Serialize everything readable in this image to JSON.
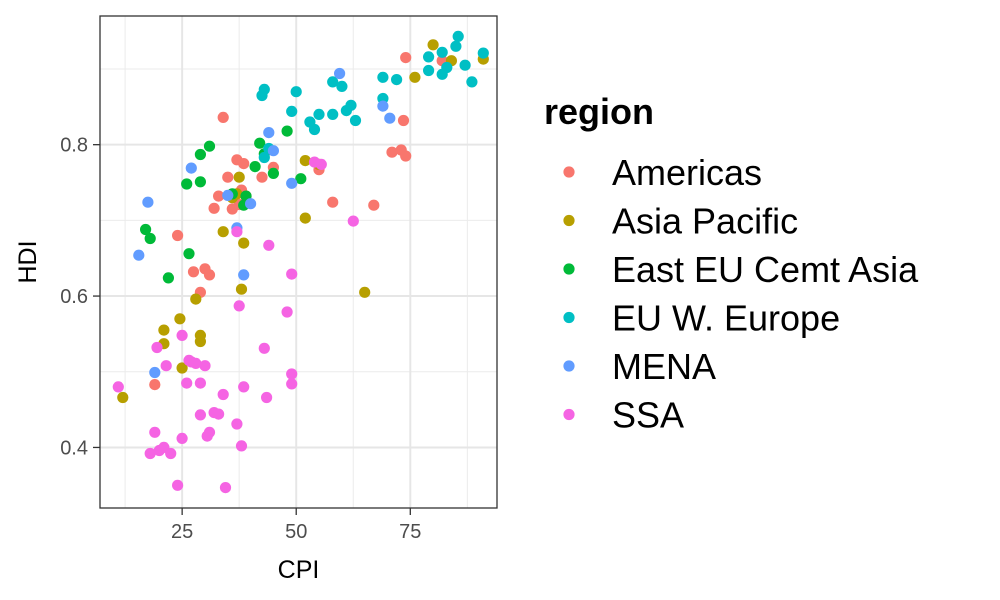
{
  "chart_data": {
    "type": "scatter",
    "xlabel": "CPI",
    "ylabel": "HDI",
    "xlim": [
      7,
      94
    ],
    "ylim": [
      0.32,
      0.97
    ],
    "x_ticks": [
      25,
      50,
      75
    ],
    "y_ticks": [
      0.4,
      0.6,
      0.8
    ],
    "x_tick_labels": [
      "25",
      "50",
      "75"
    ],
    "y_tick_labels": [
      "0.4",
      "0.6",
      "0.8"
    ],
    "grid": true,
    "legend": {
      "title": "region",
      "position": "right"
    },
    "series": [
      {
        "name": "Americas",
        "color": "#F8766D",
        "points": [
          [
            19,
            0.483
          ],
          [
            24,
            0.68
          ],
          [
            27.5,
            0.632
          ],
          [
            29,
            0.605
          ],
          [
            30,
            0.636
          ],
          [
            31,
            0.628
          ],
          [
            32,
            0.716
          ],
          [
            33,
            0.732
          ],
          [
            34,
            0.836
          ],
          [
            35,
            0.757
          ],
          [
            36,
            0.715
          ],
          [
            37,
            0.78
          ],
          [
            37.5,
            0.721
          ],
          [
            38,
            0.74
          ],
          [
            38.5,
            0.775
          ],
          [
            39,
            0.732
          ],
          [
            42.5,
            0.757
          ],
          [
            45,
            0.77
          ],
          [
            55,
            0.767
          ],
          [
            58,
            0.724
          ],
          [
            67,
            0.72
          ],
          [
            71,
            0.79
          ],
          [
            73,
            0.793
          ],
          [
            73.5,
            0.832
          ],
          [
            74,
            0.785
          ],
          [
            74,
            0.915
          ],
          [
            82,
            0.911
          ]
        ]
      },
      {
        "name": "Asia Pacific",
        "color": "#B79F00",
        "points": [
          [
            12,
            0.466
          ],
          [
            21,
            0.537
          ],
          [
            21,
            0.555
          ],
          [
            24.5,
            0.57
          ],
          [
            25,
            0.505
          ],
          [
            28,
            0.596
          ],
          [
            29,
            0.548
          ],
          [
            29,
            0.54
          ],
          [
            34,
            0.685
          ],
          [
            36,
            0.73
          ],
          [
            37,
            0.735
          ],
          [
            37.5,
            0.757
          ],
          [
            38,
            0.609
          ],
          [
            38.5,
            0.67
          ],
          [
            52,
            0.779
          ],
          [
            52,
            0.703
          ],
          [
            55,
            0.774
          ],
          [
            65,
            0.605
          ],
          [
            76,
            0.889
          ],
          [
            80,
            0.932
          ],
          [
            84,
            0.911
          ],
          [
            91,
            0.913
          ]
        ]
      },
      {
        "name": "East EU Cemt Asia",
        "color": "#00BA38",
        "points": [
          [
            17,
            0.688
          ],
          [
            18,
            0.676
          ],
          [
            22,
            0.624
          ],
          [
            26,
            0.748
          ],
          [
            26.5,
            0.656
          ],
          [
            29,
            0.751
          ],
          [
            29,
            0.787
          ],
          [
            31,
            0.798
          ],
          [
            36,
            0.735
          ],
          [
            38.5,
            0.72
          ],
          [
            39,
            0.732
          ],
          [
            41,
            0.771
          ],
          [
            42,
            0.802
          ],
          [
            43,
            0.788
          ],
          [
            45,
            0.762
          ],
          [
            48,
            0.818
          ],
          [
            51,
            0.755
          ]
        ]
      },
      {
        "name": "EU W. Europe",
        "color": "#00BFC4",
        "points": [
          [
            42.5,
            0.865
          ],
          [
            43,
            0.873
          ],
          [
            43,
            0.783
          ],
          [
            44,
            0.795
          ],
          [
            49,
            0.844
          ],
          [
            50,
            0.87
          ],
          [
            53,
            0.83
          ],
          [
            54,
            0.82
          ],
          [
            55,
            0.84
          ],
          [
            58,
            0.84
          ],
          [
            58,
            0.883
          ],
          [
            60,
            0.877
          ],
          [
            61,
            0.845
          ],
          [
            62,
            0.852
          ],
          [
            63,
            0.832
          ],
          [
            69,
            0.861
          ],
          [
            69,
            0.889
          ],
          [
            72,
            0.886
          ],
          [
            79,
            0.898
          ],
          [
            79,
            0.916
          ],
          [
            82,
            0.893
          ],
          [
            82,
            0.922
          ],
          [
            83,
            0.902
          ],
          [
            85,
            0.93
          ],
          [
            85.5,
            0.943
          ],
          [
            87,
            0.905
          ],
          [
            88.5,
            0.883
          ],
          [
            91,
            0.921
          ]
        ]
      },
      {
        "name": "MENA",
        "color": "#619CFF",
        "points": [
          [
            15.5,
            0.654
          ],
          [
            17.5,
            0.724
          ],
          [
            19,
            0.499
          ],
          [
            27,
            0.769
          ],
          [
            35,
            0.733
          ],
          [
            37,
            0.69
          ],
          [
            38.5,
            0.628
          ],
          [
            40,
            0.722
          ],
          [
            44,
            0.816
          ],
          [
            45,
            0.792
          ],
          [
            49,
            0.749
          ],
          [
            59.5,
            0.894
          ],
          [
            69,
            0.851
          ],
          [
            70.5,
            0.835
          ]
        ]
      },
      {
        "name": "SSA",
        "color": "#F564E3",
        "points": [
          [
            11,
            0.48
          ],
          [
            18,
            0.392
          ],
          [
            19,
            0.42
          ],
          [
            19.5,
            0.532
          ],
          [
            20,
            0.396
          ],
          [
            21,
            0.4
          ],
          [
            21.5,
            0.508
          ],
          [
            22.5,
            0.392
          ],
          [
            24,
            0.35
          ],
          [
            25,
            0.548
          ],
          [
            25,
            0.412
          ],
          [
            26,
            0.485
          ],
          [
            26.5,
            0.515
          ],
          [
            27,
            0.513
          ],
          [
            28,
            0.511
          ],
          [
            29,
            0.485
          ],
          [
            29,
            0.443
          ],
          [
            30,
            0.508
          ],
          [
            30.5,
            0.415
          ],
          [
            31,
            0.42
          ],
          [
            32,
            0.446
          ],
          [
            33,
            0.444
          ],
          [
            34,
            0.47
          ],
          [
            34.5,
            0.347
          ],
          [
            37,
            0.431
          ],
          [
            37,
            0.685
          ],
          [
            37.5,
            0.587
          ],
          [
            38,
            0.402
          ],
          [
            38.5,
            0.48
          ],
          [
            43,
            0.531
          ],
          [
            43.5,
            0.466
          ],
          [
            44,
            0.667
          ],
          [
            48,
            0.579
          ],
          [
            49,
            0.629
          ],
          [
            49,
            0.497
          ],
          [
            49,
            0.484
          ],
          [
            54,
            0.777
          ],
          [
            55.5,
            0.774
          ],
          [
            62.5,
            0.699
          ]
        ]
      }
    ]
  }
}
